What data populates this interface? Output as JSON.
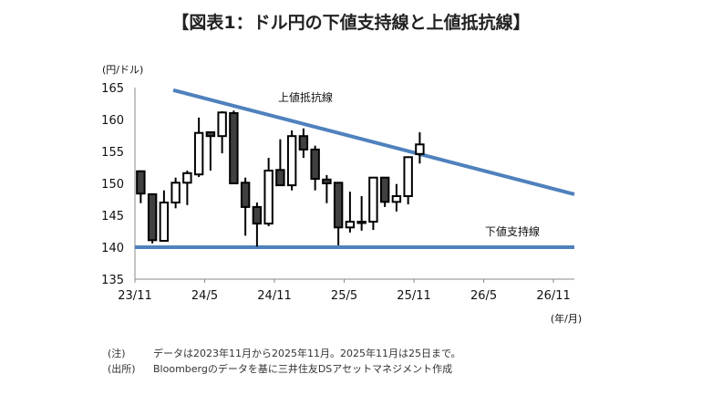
{
  "title": "【図表1：ドル円の下値支持線と上値抵抗線】",
  "notes": [
    {
      "key": "(注)",
      "text": "データは2023年11月から2025年11月。2025年11月は25日まで。"
    },
    {
      "key": "(出所)",
      "text": "Bloombergのデータを基に三井住友DSアセットマネジメント作成"
    }
  ],
  "chart_data": {
    "type": "candlestick",
    "ylabel": "(円/ドル)",
    "xlabel": "(年/月)",
    "ylim": [
      135,
      165
    ],
    "yticks": [
      135,
      140,
      145,
      150,
      155,
      160,
      165
    ],
    "xticks": [
      "23/11",
      "24/5",
      "24/11",
      "25/5",
      "25/11",
      "26/5",
      "26/11"
    ],
    "x_months_since_start_range": [
      0,
      37.8
    ],
    "candles": [
      {
        "o": 151.9,
        "h": 151.9,
        "l": 146.9,
        "c": 148.4
      },
      {
        "o": 148.3,
        "h": 148.3,
        "l": 140.6,
        "c": 141.1
      },
      {
        "o": 141.0,
        "h": 148.9,
        "l": 141.0,
        "c": 147.0
      },
      {
        "o": 147.0,
        "h": 150.9,
        "l": 146.1,
        "c": 150.1
      },
      {
        "o": 150.1,
        "h": 152.0,
        "l": 146.6,
        "c": 151.6
      },
      {
        "o": 151.4,
        "h": 160.3,
        "l": 151.0,
        "c": 157.9
      },
      {
        "o": 158.0,
        "h": 158.0,
        "l": 152.0,
        "c": 157.4
      },
      {
        "o": 157.4,
        "h": 161.3,
        "l": 154.7,
        "c": 161.1
      },
      {
        "o": 161.0,
        "h": 161.4,
        "l": 149.9,
        "c": 150.0
      },
      {
        "o": 150.1,
        "h": 150.9,
        "l": 141.8,
        "c": 146.3
      },
      {
        "o": 146.3,
        "h": 147.0,
        "l": 140.1,
        "c": 143.7
      },
      {
        "o": 143.7,
        "h": 154.0,
        "l": 143.3,
        "c": 152.0
      },
      {
        "o": 152.1,
        "h": 156.9,
        "l": 149.7,
        "c": 149.7
      },
      {
        "o": 149.7,
        "h": 158.3,
        "l": 148.9,
        "c": 157.4
      },
      {
        "o": 157.4,
        "h": 158.6,
        "l": 154.0,
        "c": 155.3
      },
      {
        "o": 155.3,
        "h": 155.9,
        "l": 148.9,
        "c": 150.7
      },
      {
        "o": 150.6,
        "h": 151.3,
        "l": 146.9,
        "c": 150.0
      },
      {
        "o": 150.1,
        "h": 150.1,
        "l": 140.3,
        "c": 143.1
      },
      {
        "o": 143.1,
        "h": 148.7,
        "l": 142.3,
        "c": 144.0
      },
      {
        "o": 144.0,
        "h": 148.0,
        "l": 142.6,
        "c": 144.0
      },
      {
        "o": 144.0,
        "h": 150.9,
        "l": 142.7,
        "c": 150.9
      },
      {
        "o": 150.9,
        "h": 150.9,
        "l": 146.3,
        "c": 147.1
      },
      {
        "o": 147.1,
        "h": 149.9,
        "l": 145.6,
        "c": 148.0
      },
      {
        "o": 148.0,
        "h": 154.1,
        "l": 146.7,
        "c": 154.1
      },
      {
        "o": 154.6,
        "h": 158.0,
        "l": 153.1,
        "c": 156.1
      }
    ],
    "lines": [
      {
        "name": "上値抵抗線",
        "points": [
          [
            3.3,
            164.6
          ],
          [
            37.8,
            148.3
          ]
        ],
        "color": "#4f81bd"
      },
      {
        "name": "下値支持線",
        "points": [
          [
            0,
            140
          ],
          [
            37.8,
            140
          ]
        ],
        "color": "#4f81bd"
      }
    ],
    "colors": {
      "bear": "#404040",
      "bull": "#ffffff",
      "line": "#4f81bd"
    }
  }
}
